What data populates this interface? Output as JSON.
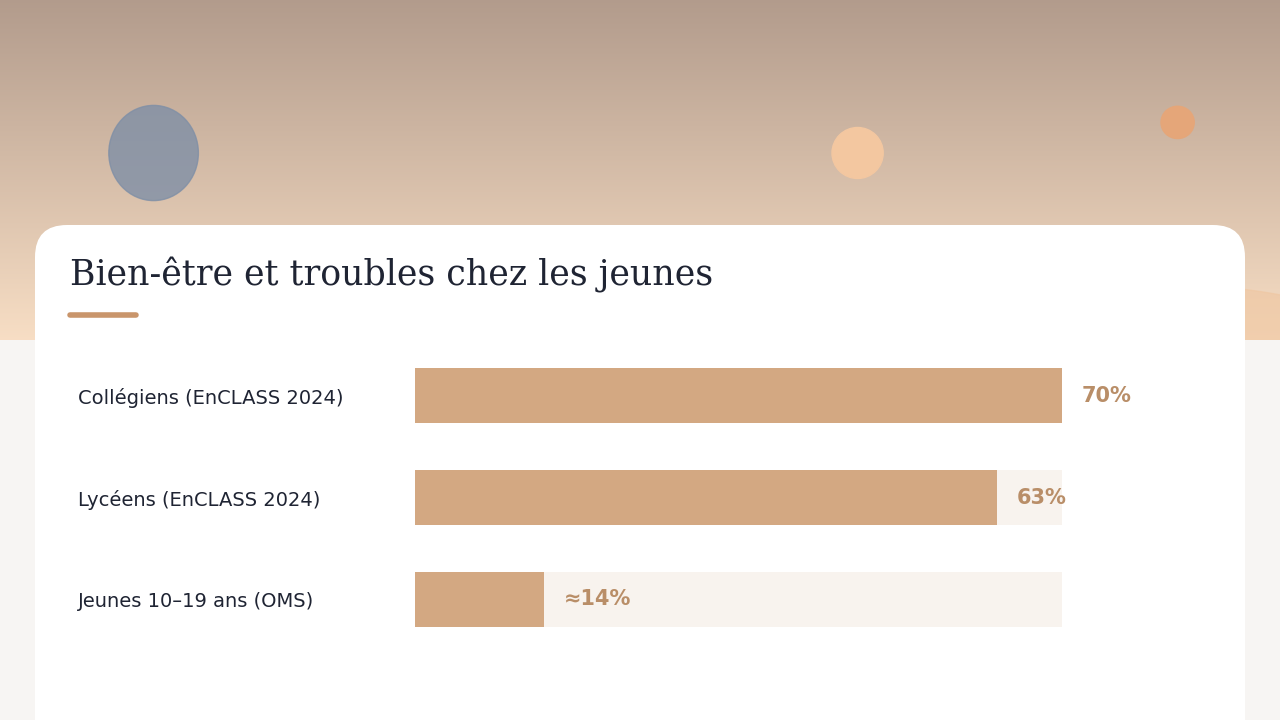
{
  "chart_data": {
    "type": "bar",
    "orientation": "horizontal",
    "title": "Bien-être et troubles chez les jeunes",
    "categories": [
      "Collégiens (EnCLASS 2024)",
      "Lycéens (EnCLASS 2024)",
      "Jeunes 10–19 ans (OMS)"
    ],
    "values": [
      70,
      63,
      14
    ],
    "value_labels": [
      "70%",
      "63%",
      "≈14%"
    ],
    "data_labels": true,
    "color": "#d3a882",
    "xlim": [
      0,
      70
    ],
    "tick_labels": "y",
    "grid": false
  }
}
